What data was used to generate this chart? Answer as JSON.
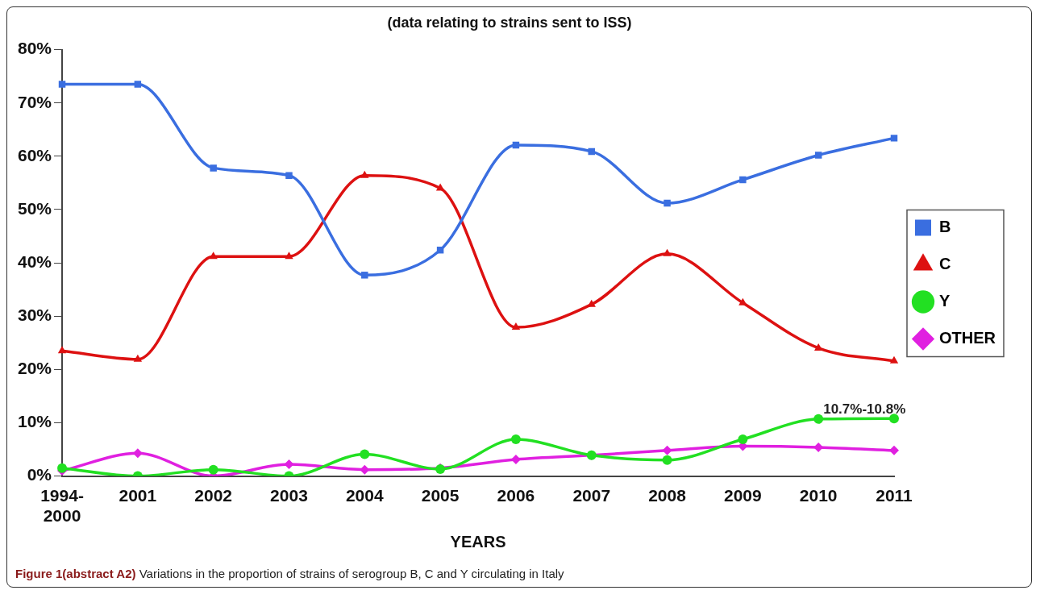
{
  "chart_data": {
    "type": "line",
    "title": "(data relating to strains sent to ISS)",
    "xlabel": "YEARS",
    "categories": [
      "1994-2000",
      "2001",
      "2002",
      "2003",
      "2004",
      "2005",
      "2006",
      "2007",
      "2008",
      "2009",
      "2010",
      "2011"
    ],
    "series": [
      {
        "name": "B",
        "color": "#3a6ee0",
        "marker": "square",
        "values": [
          73.5,
          73.5,
          57.8,
          56.4,
          37.7,
          42.4,
          62.1,
          60.9,
          51.2,
          55.6,
          60.2,
          63.4
        ]
      },
      {
        "name": "C",
        "color": "#dd1111",
        "marker": "triangle",
        "values": [
          23.5,
          21.9,
          41.2,
          41.2,
          56.4,
          54,
          27.9,
          32.2,
          41.7,
          32.5,
          24,
          21.6
        ]
      },
      {
        "name": "Y",
        "color": "#22e022",
        "marker": "circle",
        "values": [
          1.5,
          0,
          1.2,
          0,
          4.1,
          1.3,
          6.9,
          3.9,
          3,
          6.9,
          10.7,
          10.8
        ]
      },
      {
        "name": "OTHER",
        "color": "#e020e0",
        "marker": "diamond",
        "values": [
          1,
          4.3,
          0,
          2.2,
          1.2,
          1.5,
          3.1,
          3.9,
          4.8,
          5.6,
          5.4,
          4.8
        ]
      }
    ],
    "ylim": [
      0,
      80
    ],
    "yticks": [
      {
        "value": 0,
        "label": "0%"
      },
      {
        "value": 10,
        "label": "10%"
      },
      {
        "value": 20,
        "label": "20%"
      },
      {
        "value": 30,
        "label": "30%"
      },
      {
        "value": 40,
        "label": "40%"
      },
      {
        "value": 50,
        "label": "50%"
      },
      {
        "value": 60,
        "label": "60%"
      },
      {
        "value": 70,
        "label": "70%"
      },
      {
        "value": 80,
        "label": "80%"
      }
    ],
    "grid": false,
    "legend": "right",
    "annotations": [
      {
        "text": "10.7%-10.8%",
        "x": "2010",
        "y": 10.7
      },
      "Figure 1(abstract A2)",
      "Variations in the proportion of strains of serogroup B, C and Y circulating in Italy"
    ]
  }
}
